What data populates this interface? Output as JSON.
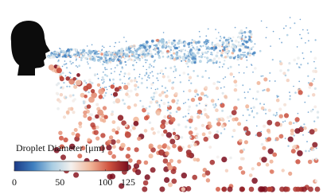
{
  "colorbar": {
    "label": "Droplet Diameter [μm]",
    "range": [
      0,
      125
    ],
    "ticks": [
      0,
      50,
      100,
      125
    ],
    "colormap": [
      "#1b3a86",
      "#3f7fbf",
      "#a9cde3",
      "#f4f1ee",
      "#f2b79a",
      "#d0533f",
      "#7a0c1c"
    ]
  }
}
